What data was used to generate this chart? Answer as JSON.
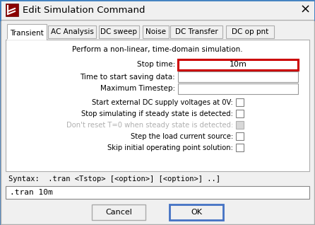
{
  "title": "Edit Simulation Command",
  "bg_color": "#f0f0f0",
  "white": "#ffffff",
  "tab_active": "Transient",
  "tabs": [
    "Transient",
    "AC Analysis",
    "DC sweep",
    "Noise",
    "DC Transfer",
    "DC op pnt"
  ],
  "tab_starts": [
    10,
    68,
    140,
    202,
    241,
    320
  ],
  "tab_widths": [
    56,
    68,
    57,
    37,
    74,
    68
  ],
  "description": "Perform a non-linear, time-domain simulation.",
  "fields": [
    {
      "label": "Stop time:",
      "value": "10m",
      "highlight": true
    },
    {
      "label": "Time to start saving data:",
      "value": "",
      "highlight": false
    },
    {
      "label": "Maximum Timestep:",
      "value": "",
      "highlight": false
    }
  ],
  "checkboxes": [
    {
      "label": "Start external DC supply voltages at 0V:",
      "checked": false,
      "grayed": false
    },
    {
      "label": "Stop simulating if steady state is detected:",
      "checked": false,
      "grayed": false
    },
    {
      "label": "Don't reset T=0 when steady state is detected:",
      "checked": false,
      "grayed": true
    },
    {
      "label": "Step the load current source:",
      "checked": false,
      "grayed": false
    },
    {
      "label": "Skip initial operating point solution:",
      "checked": false,
      "grayed": false
    }
  ],
  "syntax_label": "Syntax:  .tran <Tstop> [<option>] [<option>] ..]",
  "command_text": ".tran 10m",
  "btn_cancel": "Cancel",
  "btn_ok": "OK",
  "border_color": "#adadad",
  "highlight_border": "#cc0000",
  "ok_border": "#4472c4",
  "gray_text": "#b0b0b0",
  "title_border": "#4080c0"
}
